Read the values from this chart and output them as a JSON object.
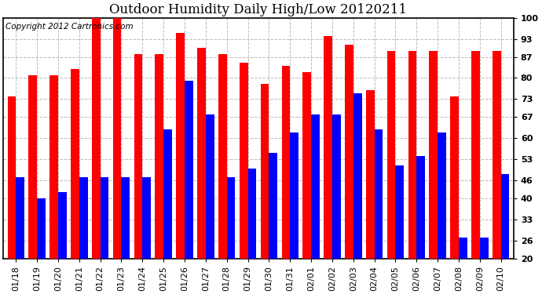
{
  "title": "Outdoor Humidity Daily High/Low 20120211",
  "copyright": "Copyright 2012 Cartronics.com",
  "labels": [
    "01/18",
    "01/19",
    "01/20",
    "01/21",
    "01/22",
    "01/23",
    "01/24",
    "01/25",
    "01/26",
    "01/27",
    "01/28",
    "01/29",
    "01/30",
    "01/31",
    "02/01",
    "02/02",
    "02/03",
    "02/04",
    "02/05",
    "02/06",
    "02/07",
    "02/08",
    "02/09",
    "02/10"
  ],
  "highs": [
    74,
    81,
    81,
    83,
    100,
    100,
    88,
    88,
    95,
    90,
    88,
    85,
    78,
    84,
    82,
    94,
    91,
    76,
    89,
    89,
    89,
    74,
    89,
    89
  ],
  "lows": [
    47,
    40,
    42,
    47,
    47,
    47,
    47,
    63,
    79,
    68,
    47,
    50,
    55,
    62,
    68,
    68,
    75,
    63,
    51,
    54,
    62,
    27,
    27,
    48
  ],
  "high_color": "#ff0000",
  "low_color": "#0000ff",
  "background_color": "#ffffff",
  "grid_color": "#bbbbbb",
  "ylim_min": 20,
  "ylim_max": 100,
  "yticks": [
    20,
    26,
    33,
    40,
    46,
    53,
    60,
    67,
    73,
    80,
    87,
    93,
    100
  ],
  "title_fontsize": 12,
  "tick_fontsize": 8,
  "copyright_fontsize": 7.5,
  "bar_width": 0.4
}
